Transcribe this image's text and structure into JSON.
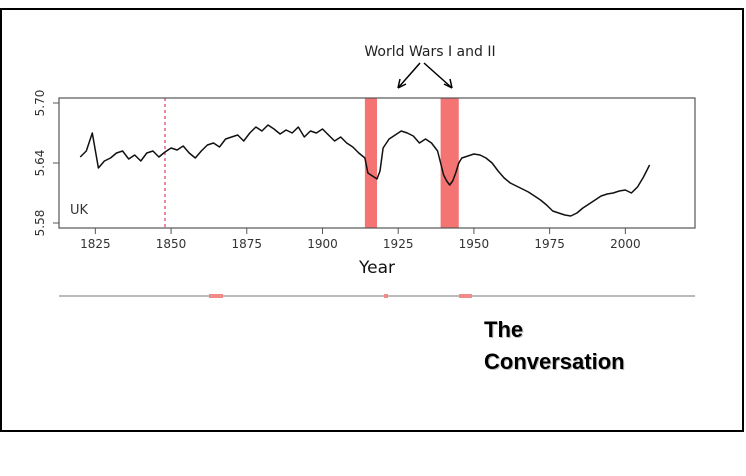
{
  "chart_data": {
    "type": "line",
    "annotation": "World Wars I and II",
    "series_label": "UK",
    "xlabel": "Year",
    "ylabel": "",
    "xlim": [
      1813,
      2023
    ],
    "ylim": [
      5.575,
      5.705
    ],
    "x_ticks": [
      1825,
      1850,
      1875,
      1900,
      1925,
      1950,
      1975,
      2000
    ],
    "y_ticks": [
      5.58,
      5.64,
      5.7
    ],
    "dashed_marker_year": 1848,
    "shaded_periods": [
      [
        1914,
        1918
      ],
      [
        1939,
        1945
      ]
    ],
    "grid": false,
    "series": [
      {
        "x": [
          1820,
          1822,
          1824,
          1826,
          1828,
          1830,
          1832,
          1834,
          1836,
          1838,
          1840,
          1842,
          1844,
          1846,
          1848,
          1850,
          1852,
          1854,
          1856,
          1858,
          1860,
          1862,
          1864,
          1866,
          1868,
          1870,
          1872,
          1874,
          1876,
          1878,
          1880,
          1882,
          1884,
          1886,
          1888,
          1890,
          1892,
          1894,
          1896,
          1898,
          1900,
          1902,
          1904,
          1906,
          1908,
          1910,
          1912,
          1914,
          1915,
          1916,
          1917,
          1918,
          1919,
          1920,
          1922,
          1924,
          1926,
          1928,
          1930,
          1932,
          1934,
          1936,
          1938,
          1939,
          1940,
          1941,
          1942,
          1943,
          1944,
          1945,
          1946,
          1948,
          1950,
          1952,
          1954,
          1956,
          1958,
          1960,
          1962,
          1964,
          1966,
          1968,
          1970,
          1972,
          1974,
          1976,
          1978,
          1980,
          1982,
          1984,
          1986,
          1988,
          1990,
          1992,
          1994,
          1996,
          1998,
          2000,
          2002,
          2004,
          2006,
          2008
        ],
        "values": [
          5.646,
          5.652,
          5.67,
          5.635,
          5.642,
          5.645,
          5.65,
          5.652,
          5.644,
          5.648,
          5.642,
          5.65,
          5.652,
          5.646,
          5.651,
          5.655,
          5.653,
          5.657,
          5.65,
          5.645,
          5.652,
          5.658,
          5.66,
          5.656,
          5.664,
          5.666,
          5.668,
          5.662,
          5.67,
          5.676,
          5.672,
          5.678,
          5.674,
          5.669,
          5.673,
          5.67,
          5.676,
          5.666,
          5.672,
          5.67,
          5.674,
          5.668,
          5.662,
          5.666,
          5.66,
          5.656,
          5.65,
          5.645,
          5.63,
          5.628,
          5.626,
          5.624,
          5.632,
          5.655,
          5.664,
          5.668,
          5.672,
          5.67,
          5.667,
          5.66,
          5.664,
          5.66,
          5.652,
          5.64,
          5.628,
          5.622,
          5.618,
          5.622,
          5.63,
          5.64,
          5.645,
          5.647,
          5.649,
          5.648,
          5.645,
          5.64,
          5.632,
          5.625,
          5.62,
          5.617,
          5.614,
          5.611,
          5.607,
          5.603,
          5.598,
          5.592,
          5.59,
          5.588,
          5.587,
          5.59,
          5.595,
          5.599,
          5.603,
          5.607,
          5.609,
          5.61,
          5.612,
          5.613,
          5.61,
          5.616,
          5.626,
          5.638
        ]
      }
    ]
  },
  "watermark": {
    "line1": "The",
    "line2": "Conversation"
  }
}
